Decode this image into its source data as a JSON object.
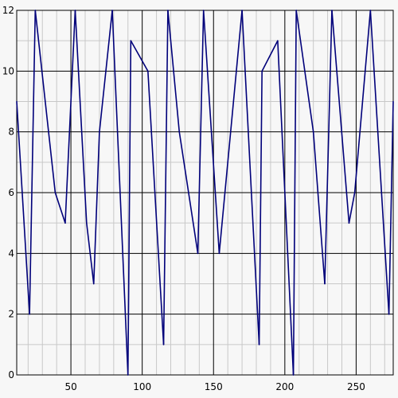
{
  "chart_data": {
    "type": "line",
    "title": "",
    "xlabel": "",
    "ylabel": "",
    "xlim": [
      12,
      276
    ],
    "ylim": [
      0,
      12
    ],
    "x_ticks": [
      50,
      100,
      150,
      200,
      250
    ],
    "y_ticks": [
      0,
      2,
      4,
      6,
      8,
      10,
      12
    ],
    "x_tick_labels": [
      "50",
      "100",
      "150",
      "200",
      "250"
    ],
    "y_tick_labels": [
      "0",
      "2",
      "4",
      "6",
      "8",
      "10",
      "12"
    ],
    "x_minor_step": 10,
    "y_minor_step": 1,
    "grid": true,
    "legend": "none",
    "colors": {
      "background": "#f7f7f7",
      "major_grid": "#000000",
      "minor_grid": "#c8c8c8",
      "series": "#00007a"
    },
    "series": [
      {
        "x": [
          12,
          21,
          25,
          39,
          46,
          53,
          61,
          66,
          70,
          79,
          90,
          92,
          104,
          115,
          118,
          126,
          139,
          143,
          154,
          170,
          182,
          184,
          195,
          206,
          208,
          220,
          228,
          233,
          245,
          249,
          260,
          273,
          276
        ],
        "values": [
          9,
          2,
          12,
          6,
          5,
          12,
          5,
          3,
          8,
          12,
          0,
          11,
          10,
          1,
          12,
          8,
          4,
          12,
          4,
          12,
          1,
          10,
          11,
          0,
          12,
          8,
          3,
          12,
          5,
          6,
          12,
          2,
          9
        ]
      }
    ]
  }
}
